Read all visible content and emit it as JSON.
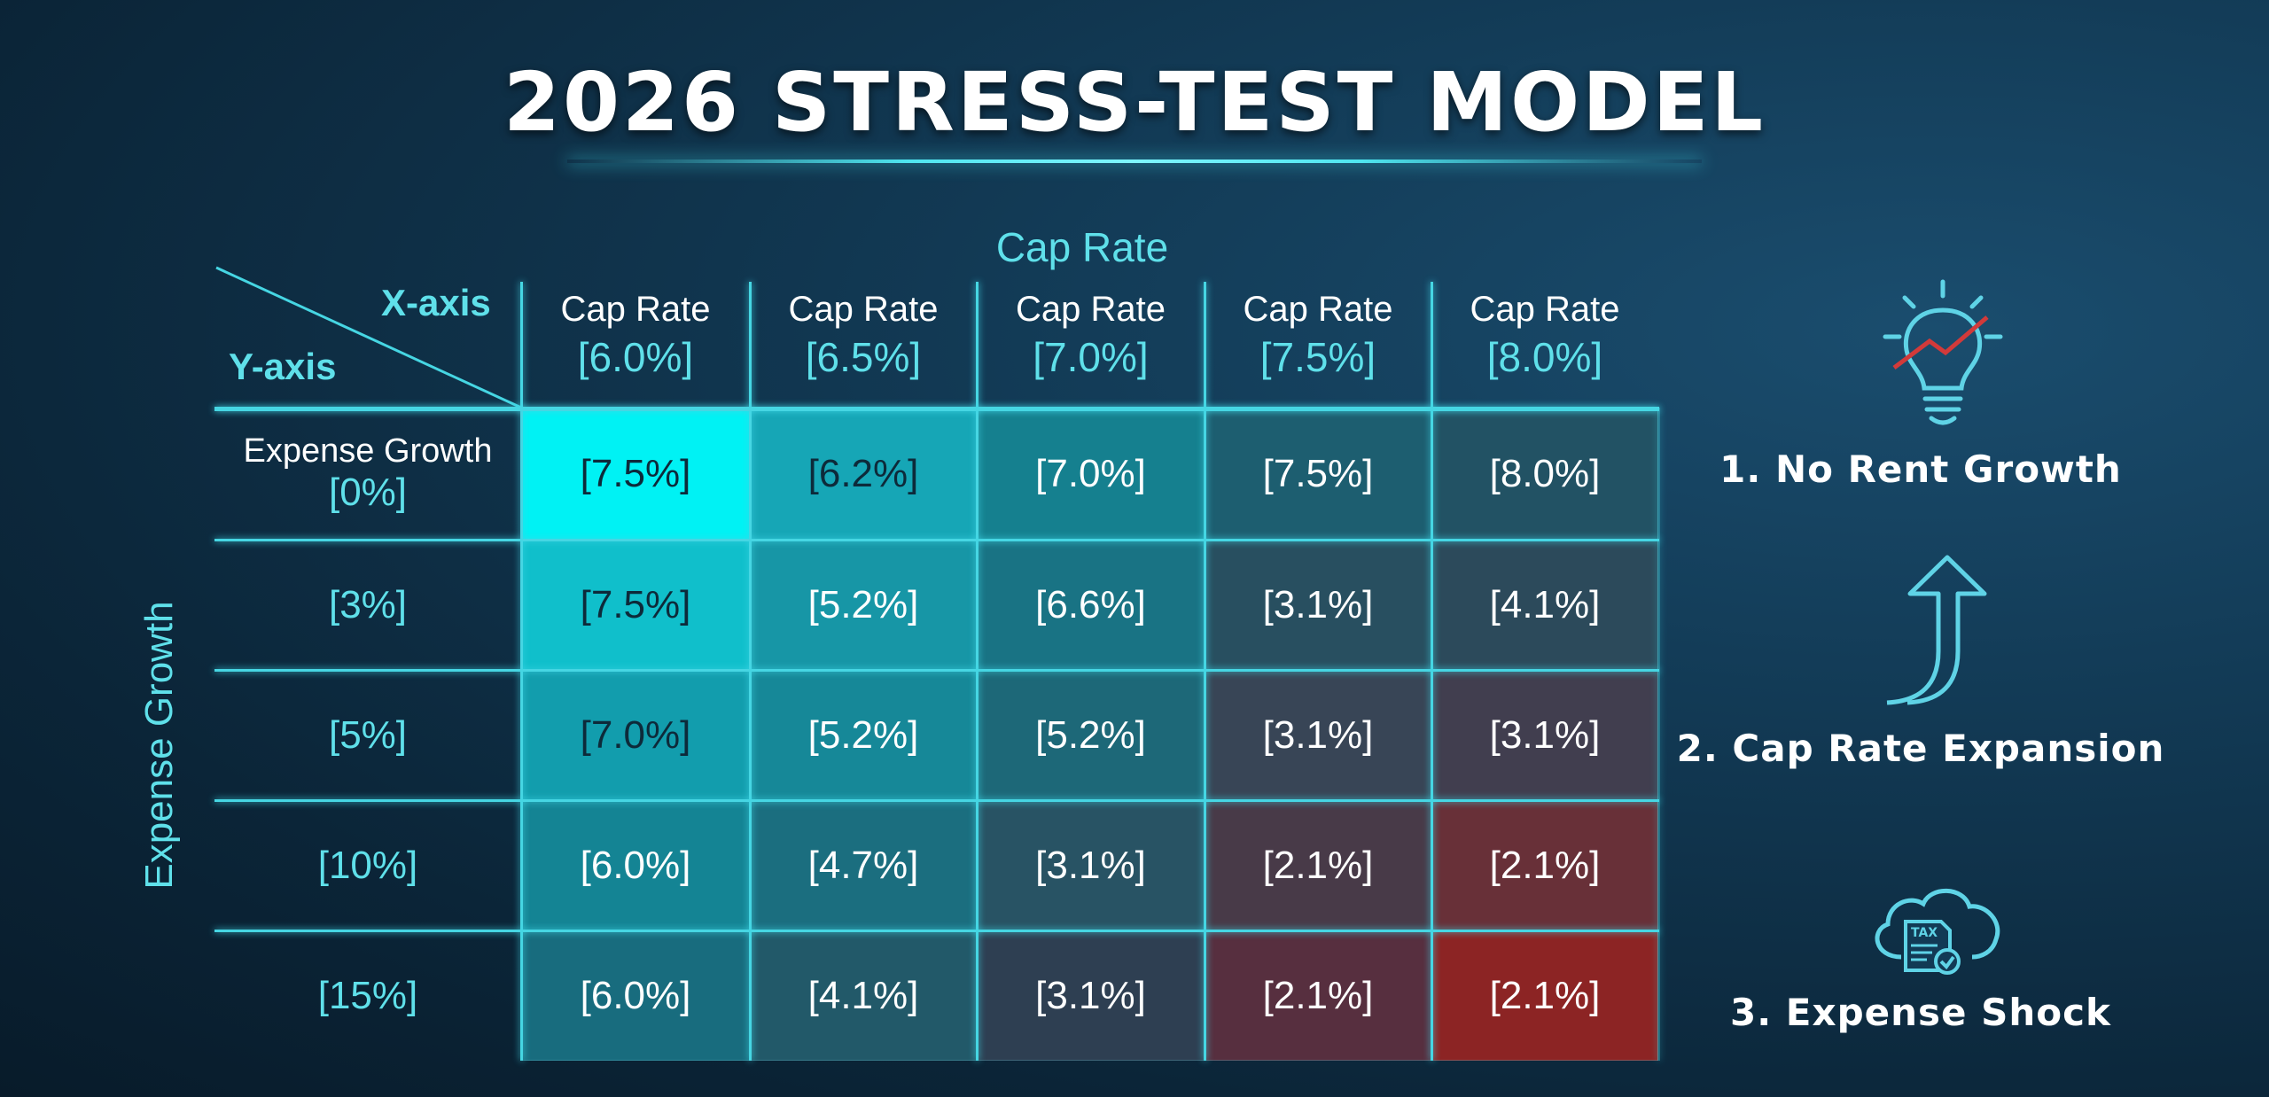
{
  "title": "2026 STRESS-TEST MODEL",
  "chart_data": {
    "type": "heatmap",
    "title": "2026 STRESS-TEST MODEL",
    "xlabel": "Cap Rate",
    "ylabel": "Expense Growth",
    "corner_x": "X-axis",
    "corner_y": "Y-axis",
    "column_prefix": "Cap Rate",
    "columns": [
      "[6.0%]",
      "[6.5%]",
      "[7.0%]",
      "[7.5%]",
      "[8.0%]"
    ],
    "row_first_prefix": "Expense Growth",
    "rows": [
      "[0%]",
      "[3%]",
      "[5%]",
      "[10%]",
      "[15%]"
    ],
    "values": [
      [
        "[7.5%]",
        "[6.2%]",
        "[7.0%]",
        "[7.5%]",
        "[8.0%]"
      ],
      [
        "[7.5%]",
        "[5.2%]",
        "[6.6%]",
        "[3.1%]",
        "[4.1%]"
      ],
      [
        "[7.0%]",
        "[5.2%]",
        "[5.2%]",
        "[3.1%]",
        "[3.1%]"
      ],
      [
        "[6.0%]",
        "[4.7%]",
        "[3.1%]",
        "[2.1%]",
        "[2.1%]"
      ],
      [
        "[6.0%]",
        "[4.1%]",
        "[3.1%]",
        "[2.1%]",
        "[2.1%]"
      ]
    ],
    "cell_colors": [
      [
        "#00f2f4",
        "#16a6b6",
        "#15808f",
        "#1d5e70",
        "#225264"
      ],
      [
        "#10bfcb",
        "#1796a6",
        "#197384",
        "#284f60",
        "#2c4a5b"
      ],
      [
        "#129dad",
        "#168898",
        "#1d6878",
        "#384556",
        "#413e4f"
      ],
      [
        "#148494",
        "#1b6e7f",
        "#285364",
        "#483a48",
        "#683038"
      ],
      [
        "#186c7e",
        "#225969",
        "#2e3f52",
        "#572f3f",
        "#8c2424"
      ]
    ],
    "dark_text_cells": [
      [
        0,
        0
      ],
      [
        0,
        1
      ],
      [
        1,
        0
      ],
      [
        2,
        0
      ]
    ],
    "grid": true
  },
  "sidebar": {
    "items": [
      {
        "label": "1. No Rent Growth",
        "icon": "lightbulb-chart-icon"
      },
      {
        "label": "2. Cap Rate Expansion",
        "icon": "arrow-up-icon"
      },
      {
        "label": "3. Expense Shock",
        "icon": "cloud-tax-icon"
      }
    ]
  },
  "colors": {
    "accent": "#5fe0ea",
    "hot": "#8c2424",
    "trend_line": "#d23a3a"
  }
}
